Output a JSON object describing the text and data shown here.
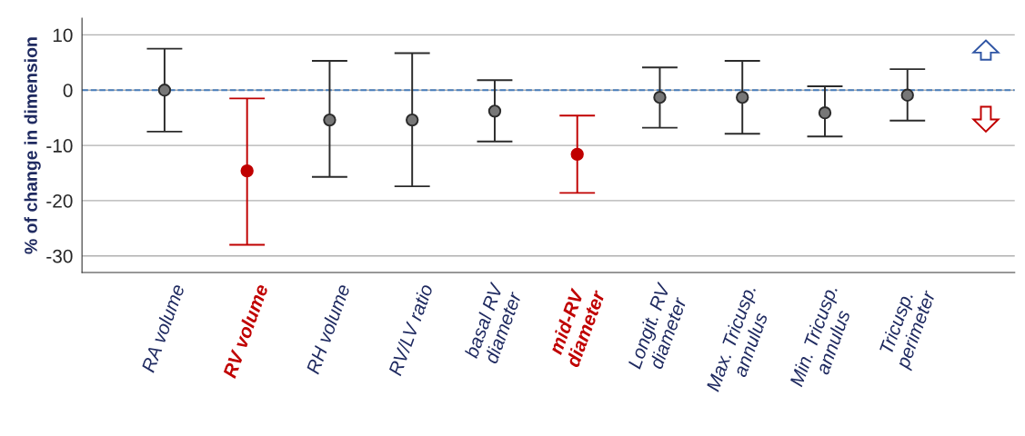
{
  "chart_data": {
    "type": "scatter",
    "ylabel": "% of change in dimension",
    "categories": [
      "RA volume",
      "RV volume",
      "RH volume",
      "RV/LV ratio",
      "basal RV\ndiameter",
      "mid-RV\ndiameter",
      "Longit. RV\ndiameter",
      "Max. Tricusp.\nannulus",
      "Min. Tricusp.\nannulus",
      "Tricusp.\nperimeter"
    ],
    "values": [
      0,
      -14.6,
      -5.4,
      -5.4,
      -3.8,
      -11.6,
      -1.3,
      -1.3,
      -4.1,
      -0.9
    ],
    "errors": [
      [
        -7.5,
        7.5
      ],
      [
        -28,
        -1.5
      ],
      [
        -15.7,
        5.3
      ],
      [
        -17.4,
        6.7
      ],
      [
        -9.3,
        1.8
      ],
      [
        -18.6,
        -4.6
      ],
      [
        -6.8,
        4.1
      ],
      [
        -7.9,
        5.3
      ],
      [
        -8.4,
        0.7
      ],
      [
        -5.5,
        3.8
      ]
    ],
    "colors": [
      "#2b2b2b",
      "#c00000",
      "#2b2b2b",
      "#2b2b2b",
      "#2b2b2b",
      "#c00000",
      "#2b2b2b",
      "#2b2b2b",
      "#2b2b2b",
      "#2b2b2b"
    ],
    "ylim": [
      -33,
      13
    ],
    "yticks": [
      10,
      0,
      -10,
      -20,
      -30
    ],
    "grid": "y",
    "marker": "circle",
    "ref_lines": [
      {
        "axis": "y",
        "value": 0,
        "color": "#4a7ebb",
        "line_style": "dashed"
      }
    ]
  }
}
